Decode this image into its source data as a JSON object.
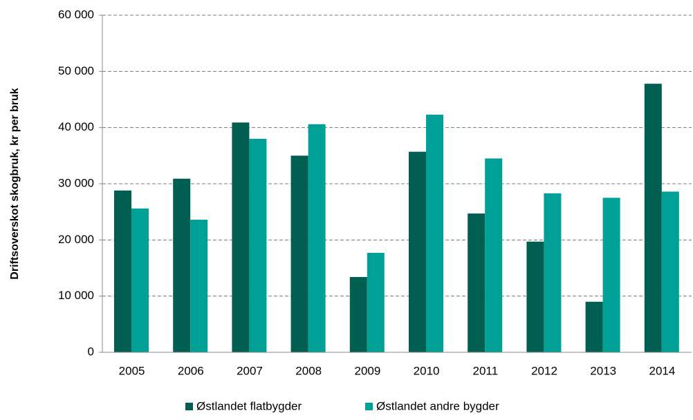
{
  "chart_data": {
    "type": "bar",
    "y_label": "Driftsoverskot skogbruk, kr per bruk",
    "categories": [
      "2005",
      "2006",
      "2007",
      "2008",
      "2009",
      "2010",
      "2011",
      "2012",
      "2013",
      "2014"
    ],
    "series": [
      {
        "name": "Østlandet flatbygder",
        "color": "#005f50",
        "values": [
          28800,
          30900,
          40900,
          35000,
          13400,
          35700,
          24700,
          19700,
          9000,
          47800
        ]
      },
      {
        "name": "Østlandet andre bygder",
        "color": "#00a096",
        "values": [
          25600,
          23600,
          38000,
          40600,
          17700,
          42300,
          34500,
          28300,
          27500,
          28600
        ]
      }
    ],
    "ylim": [
      0,
      60000
    ],
    "yticks": [
      0,
      {
        "value": 10000,
        "label": "10 000"
      },
      {
        "value": 20000,
        "label": "20 000"
      },
      {
        "value": 30000,
        "label": "30 000"
      },
      {
        "value": 40000,
        "label": "40 000"
      },
      {
        "value": 50000,
        "label": "50 000"
      },
      {
        "value": 60000,
        "label": "60 000"
      }
    ],
    "grid": true,
    "legend": "bottom"
  }
}
